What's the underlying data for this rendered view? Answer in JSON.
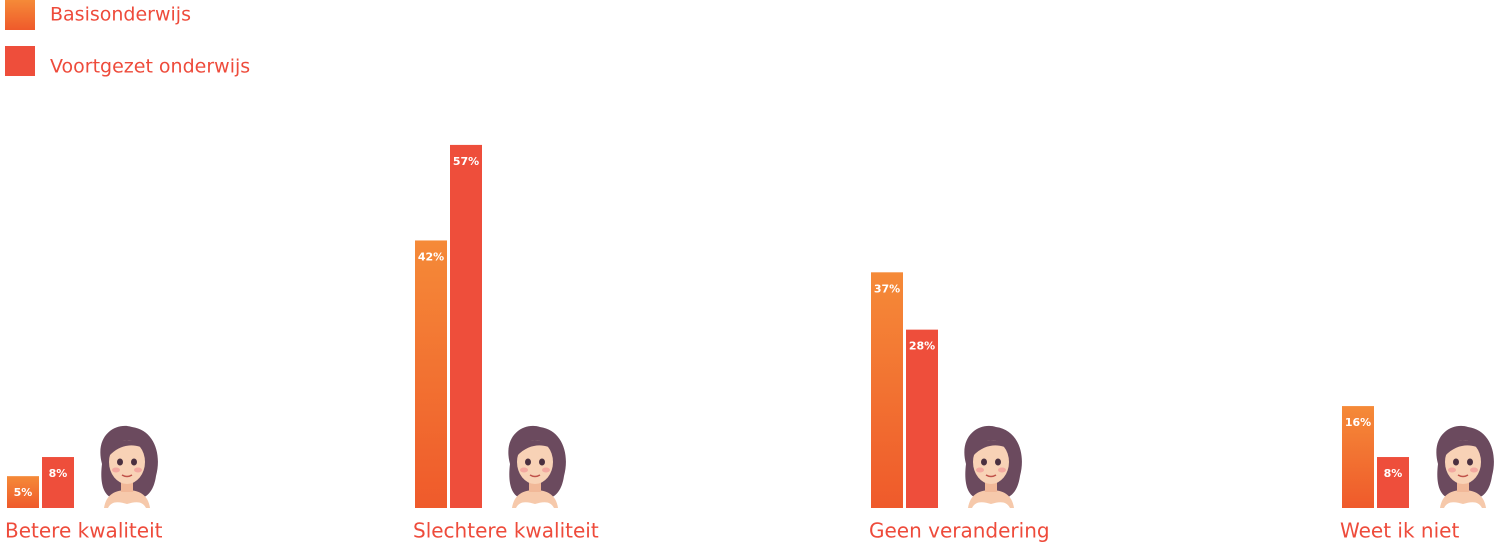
{
  "chart_data": {
    "type": "bar",
    "categories": [
      "Betere kwaliteit",
      "Slechtere kwaliteit",
      "Geen verandering",
      "Weet ik niet"
    ],
    "series": [
      {
        "name": "Basisonderwijs",
        "color": "#f2743a",
        "values": [
          5,
          42,
          37,
          16
        ],
        "value_labels": [
          "5%",
          "42%",
          "37%",
          "16%"
        ]
      },
      {
        "name": "Voortgezet onderwijs",
        "color": "#ee4e3b",
        "values": [
          8,
          57,
          28,
          8
        ],
        "value_labels": [
          "8%",
          "57%",
          "28%",
          "8%"
        ]
      }
    ]
  }
}
